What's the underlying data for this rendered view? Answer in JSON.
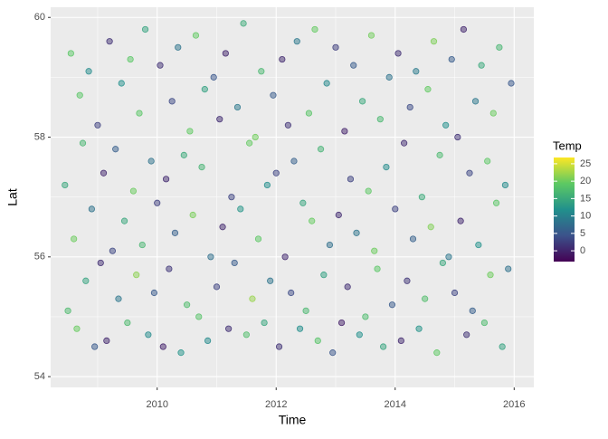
{
  "chart_data": {
    "type": "scatter",
    "x_label": "Time",
    "y_label": "Lat",
    "xlim": [
      2008.21,
      2016.33
    ],
    "xticks": [
      2010,
      2012,
      2014,
      2016
    ],
    "xminorticks": [
      2009,
      2011,
      2013,
      2015
    ],
    "ylim": [
      53.82,
      60.17
    ],
    "yticks": [
      54,
      56,
      58,
      60
    ],
    "yminorticks": [
      55,
      57,
      59
    ],
    "grid": true,
    "legend": {
      "title": "Temp",
      "position": "right",
      "colorlim": [
        -3.1,
        26.8
      ],
      "ticks": [
        0,
        5,
        10,
        15,
        20,
        25
      ],
      "palette": [
        "#440154",
        "#3b528b",
        "#21908c",
        "#5dc963",
        "#fde725"
      ]
    },
    "series": [
      {
        "x": [
          2008.45,
          2008.5,
          2008.55,
          2008.6,
          2008.65,
          2008.7,
          2008.75,
          2008.8,
          2008.85,
          2008.9,
          2008.95,
          2009.0,
          2009.05,
          2009.1,
          2009.15,
          2009.2,
          2009.25,
          2009.3,
          2009.35,
          2009.4,
          2009.45,
          2009.5,
          2009.55,
          2009.6,
          2009.65,
          2009.7,
          2009.75,
          2009.8,
          2009.85,
          2009.9,
          2009.95,
          2010.0,
          2010.05,
          2010.1,
          2010.15,
          2010.2,
          2010.25,
          2010.3,
          2010.35,
          2010.4,
          2010.45,
          2010.5,
          2010.55,
          2010.6,
          2010.65,
          2010.7,
          2010.75,
          2010.8,
          2010.85,
          2010.9,
          2010.95,
          2011.0,
          2011.05,
          2011.1,
          2011.15,
          2011.2,
          2011.25,
          2011.3,
          2011.35,
          2011.4,
          2011.45,
          2011.5,
          2011.55,
          2011.6,
          2011.65,
          2011.7,
          2011.75,
          2011.8,
          2011.85,
          2011.9,
          2011.95,
          2012.0,
          2012.05,
          2012.1,
          2012.15,
          2012.2,
          2012.25,
          2012.3,
          2012.35,
          2012.4,
          2012.45,
          2012.5,
          2012.55,
          2012.6,
          2012.65,
          2012.7,
          2012.75,
          2012.8,
          2012.85,
          2012.9,
          2012.95,
          2013.0,
          2013.05,
          2013.1,
          2013.15,
          2013.2,
          2013.25,
          2013.3,
          2013.35,
          2013.4,
          2013.45,
          2013.5,
          2013.55,
          2013.6,
          2013.65,
          2013.7,
          2013.75,
          2013.8,
          2013.85,
          2013.9,
          2013.95,
          2014.0,
          2014.05,
          2014.1,
          2014.15,
          2014.2,
          2014.25,
          2014.3,
          2014.35,
          2014.4,
          2014.45,
          2014.5,
          2014.55,
          2014.6,
          2014.65,
          2014.7,
          2014.75,
          2014.8,
          2014.85,
          2014.9,
          2014.95,
          2015.0,
          2015.05,
          2015.1,
          2015.15,
          2015.2,
          2015.25,
          2015.3,
          2015.35,
          2015.4,
          2015.45,
          2015.5,
          2015.55,
          2015.6,
          2015.65,
          2015.7,
          2015.75,
          2015.8,
          2015.85,
          2015.9,
          2015.95
        ],
        "values": [
          57.2,
          55.1,
          59.4,
          56.3,
          54.8,
          58.7,
          57.9,
          55.6,
          59.1,
          56.8,
          54.5,
          58.2,
          55.9,
          57.4,
          54.6,
          59.6,
          56.1,
          57.8,
          55.3,
          58.9,
          56.6,
          54.9,
          59.3,
          57.1,
          55.7,
          58.4,
          56.2,
          59.8,
          54.7,
          57.6,
          55.4,
          56.9,
          59.2,
          54.5,
          57.3,
          55.8,
          58.6,
          56.4,
          59.5,
          54.4,
          57.7,
          55.2,
          58.1,
          56.7,
          59.7,
          55.0,
          57.5,
          58.8,
          54.6,
          56.0,
          59.0,
          55.5,
          58.3,
          56.5,
          59.4,
          54.8,
          57.0,
          55.9,
          58.5,
          56.8,
          59.9,
          54.7,
          57.9,
          55.3,
          58.0,
          56.3,
          59.1,
          54.9,
          57.2,
          55.6,
          58.7,
          57.4,
          54.5,
          59.3,
          56.0,
          58.2,
          55.4,
          57.6,
          59.6,
          54.8,
          56.9,
          55.1,
          58.4,
          56.6,
          59.8,
          54.6,
          57.8,
          55.7,
          58.9,
          56.2,
          54.4,
          59.5,
          56.7,
          54.9,
          58.1,
          55.5,
          57.3,
          59.2,
          56.4,
          54.7,
          58.6,
          55.0,
          57.1,
          59.7,
          56.1,
          55.8,
          58.3,
          54.5,
          57.5,
          59.0,
          55.2,
          56.8,
          59.4,
          54.6,
          57.9,
          55.6,
          58.5,
          56.3,
          59.1,
          54.8,
          57.0,
          55.3,
          58.8,
          56.5,
          59.6,
          54.4,
          57.7,
          55.9,
          58.2,
          56.0,
          59.3,
          55.4,
          58.0,
          56.6,
          59.8,
          54.7,
          57.4,
          55.1,
          58.6,
          56.2,
          59.2,
          54.9,
          57.6,
          55.7,
          58.4,
          56.9,
          59.5,
          54.5,
          57.2,
          55.8,
          58.9
        ],
        "temp": [
          14.8,
          17.3,
          19.0,
          20.0,
          19.8,
          18.8,
          16.8,
          14.3,
          11.3,
          8.1,
          5.2,
          2.7,
          0.9,
          0.1,
          0.2,
          1.2,
          3.2,
          5.7,
          8.7,
          11.9,
          14.8,
          17.3,
          19.0,
          19.9,
          21.5,
          18.8,
          16.8,
          14.3,
          11.3,
          8.1,
          5.2,
          2.5,
          1.1,
          -0.3,
          0.4,
          1.6,
          3.4,
          5.9,
          8.4,
          12.2,
          15.1,
          17.6,
          19.4,
          20.6,
          19.5,
          18.4,
          16.5,
          14.0,
          11.0,
          7.8,
          4.9,
          2.9,
          0.7,
          0.2,
          -0.1,
          1.0,
          3.0,
          5.5,
          9.0,
          12.5,
          15.4,
          17.9,
          19.6,
          22.1,
          20.2,
          19.1,
          17.0,
          14.6,
          11.6,
          8.4,
          5.5,
          3.0,
          1.3,
          0.5,
          0.3,
          1.4,
          3.5,
          6.0,
          8.9,
          11.6,
          14.5,
          17.0,
          18.7,
          19.7,
          19.6,
          18.5,
          16.3,
          13.9,
          10.9,
          7.7,
          4.8,
          2.4,
          0.6,
          -0.5,
          -0.2,
          0.9,
          2.8,
          5.4,
          8.5,
          11.8,
          14.9,
          17.5,
          19.2,
          20.3,
          20.0,
          19.0,
          16.9,
          14.4,
          11.4,
          8.2,
          5.3,
          2.8,
          1.0,
          0.4,
          0.6,
          1.5,
          3.6,
          6.1,
          9.2,
          12.3,
          15.2,
          17.8,
          19.5,
          21.0,
          20.8,
          19.3,
          17.2,
          14.8,
          11.7,
          8.6,
          5.6,
          3.1,
          1.2,
          0.3,
          0.1,
          1.3,
          3.3,
          5.8,
          8.8,
          12.0,
          15.0,
          17.4,
          19.1,
          20.1,
          19.9,
          18.9,
          16.7,
          14.2,
          11.2,
          8.0,
          5.1
        ]
      }
    ]
  }
}
